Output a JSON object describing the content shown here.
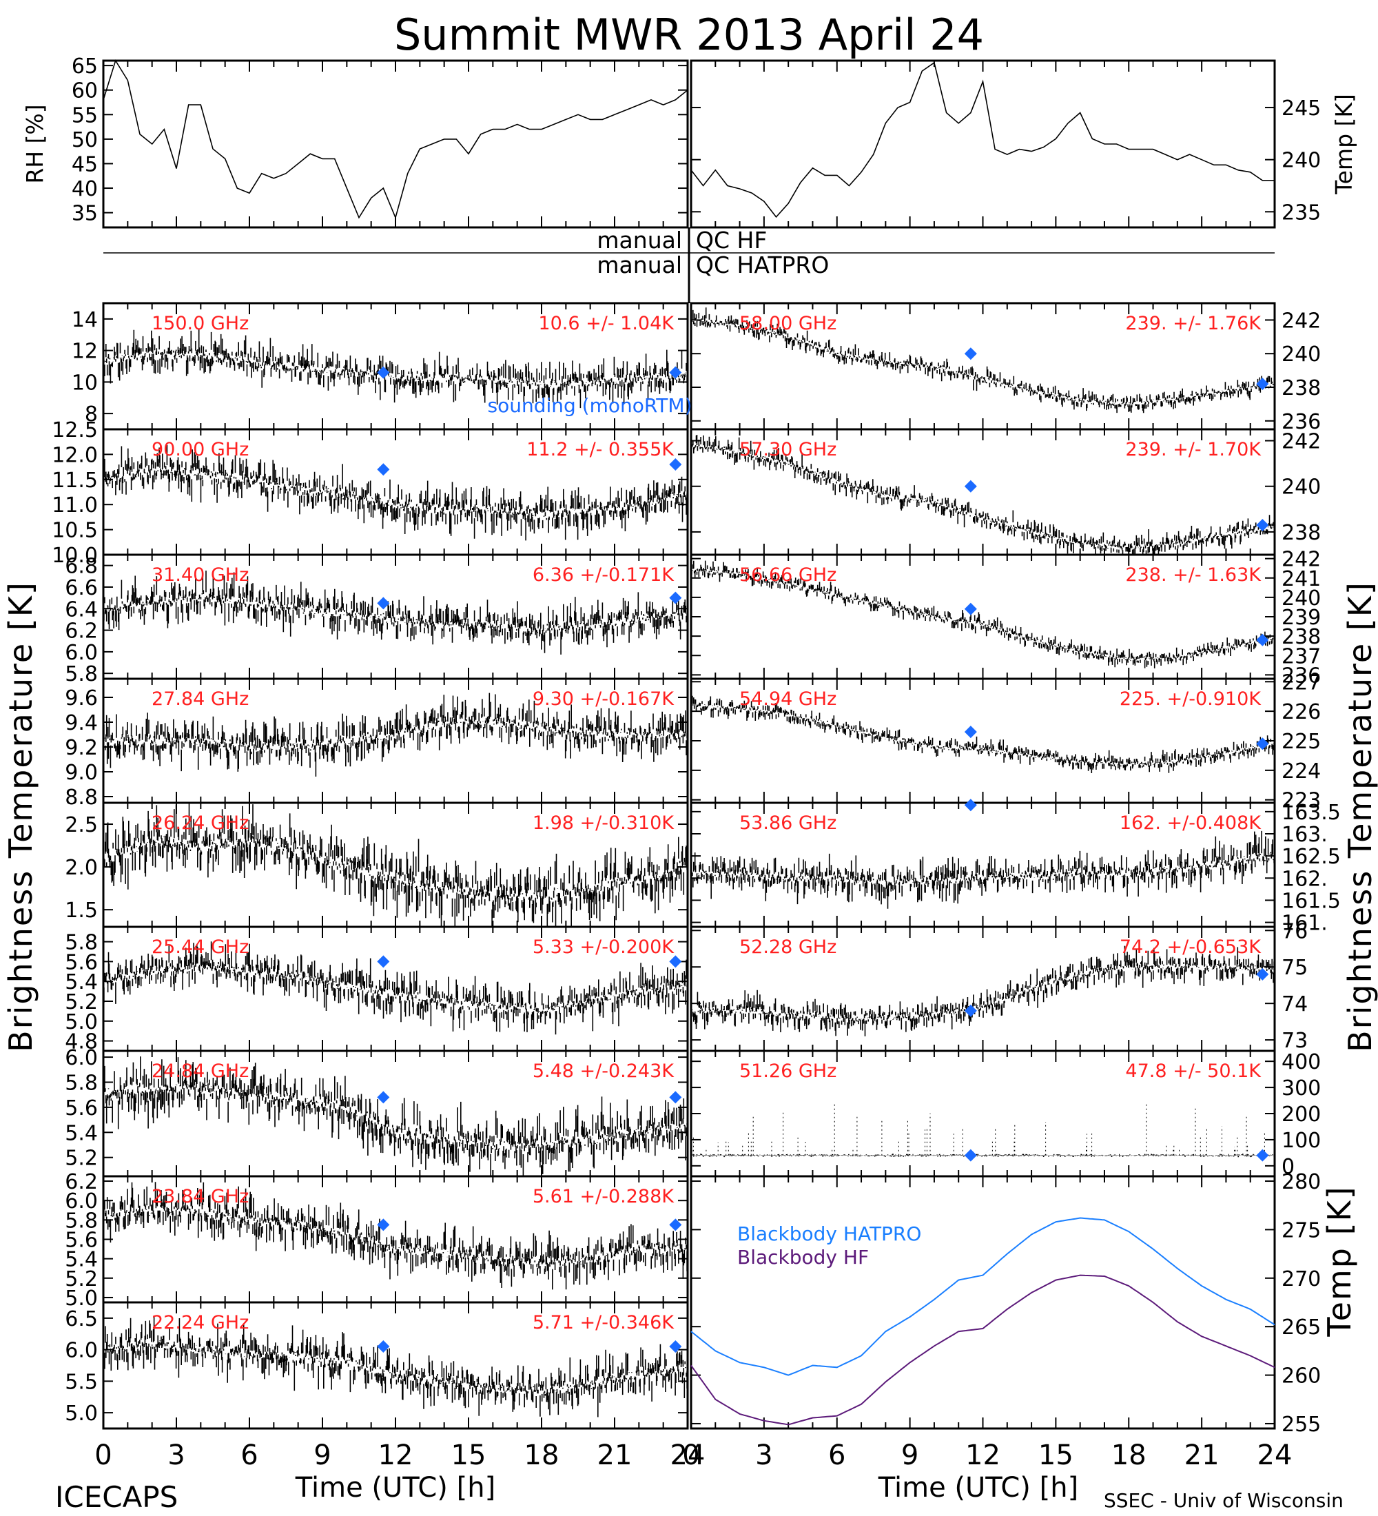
{
  "title": "Summit MWR 2013 April 24",
  "footer": {
    "left": "ICECAPS",
    "credit": "SSEC - Univ of Wisconsin"
  },
  "qc": {
    "row1_left": "manual",
    "row1_right": "QC HF",
    "row2_left": "manual",
    "row2_right": "QC HATPRO"
  },
  "labels": {
    "y_left": "Brightness Temperature [K]",
    "y_right": "Brightness Temperature [K]",
    "x_left": "Time (UTC) [h]",
    "x_right": "Time (UTC) [h]",
    "rh": "RH [%]",
    "temp_top": "Temp [K]",
    "temp_bottom": "Temp [K]",
    "sounding_legend": "sounding (monoRTM)"
  },
  "colors": {
    "data": "#000000",
    "label_red": "#ff2020",
    "sounding": "#1a6aff",
    "bb_hatpro": "#1a7fff",
    "bb_hf": "#5c1a7a"
  },
  "chart_data": [
    {
      "id": "rh",
      "type": "line",
      "title": "",
      "xlabel": "",
      "ylabel": "RH [%]",
      "xlim": [
        0,
        24
      ],
      "ylim": [
        32,
        66
      ],
      "yticks": [
        35,
        40,
        45,
        50,
        55,
        60,
        65
      ],
      "x": [
        0,
        0.5,
        1,
        1.5,
        2,
        2.5,
        3,
        3.5,
        4,
        4.5,
        5,
        5.5,
        6,
        6.5,
        7,
        7.5,
        8,
        8.5,
        9,
        9.5,
        10,
        10.5,
        11,
        11.5,
        12,
        12.5,
        13,
        13.5,
        14,
        14.5,
        15,
        15.5,
        16,
        16.5,
        17,
        17.5,
        18,
        18.5,
        19,
        19.5,
        20,
        20.5,
        21,
        21.5,
        22,
        22.5,
        23,
        23.5,
        24
      ],
      "values": [
        58,
        66,
        62,
        51,
        49,
        52,
        44,
        57,
        57,
        48,
        46,
        40,
        39,
        43,
        42,
        43,
        45,
        47,
        46,
        46,
        40,
        34,
        38,
        40,
        34,
        43,
        48,
        49,
        50,
        50,
        47,
        51,
        52,
        52,
        53,
        52,
        52,
        53,
        54,
        55,
        54,
        54,
        55,
        56,
        57,
        58,
        57,
        58,
        60
      ]
    },
    {
      "id": "temp_top",
      "type": "line",
      "title": "",
      "xlabel": "",
      "ylabel": "Temp [K]",
      "xlim": [
        0,
        24
      ],
      "ylim": [
        233.5,
        249.5
      ],
      "yticks": [
        235,
        240,
        245
      ],
      "x": [
        0,
        0.5,
        1,
        1.5,
        2,
        2.5,
        3,
        3.5,
        4,
        4.5,
        5,
        5.5,
        6,
        6.5,
        7,
        7.5,
        8,
        8.5,
        9,
        9.5,
        10,
        10.5,
        11,
        11.5,
        12,
        12.5,
        13,
        13.5,
        14,
        14.5,
        15,
        15.5,
        16,
        16.5,
        17,
        17.5,
        18,
        18.5,
        19,
        19.5,
        20,
        20.5,
        21,
        21.5,
        22,
        22.5,
        23,
        23.5,
        24
      ],
      "values": [
        239,
        237.5,
        239,
        237.5,
        237.2,
        236.8,
        236,
        234.5,
        235.8,
        237.8,
        239.2,
        238.5,
        238.5,
        237.5,
        238.8,
        240.5,
        243.5,
        245,
        245.5,
        248.5,
        249.3,
        244.5,
        243.5,
        244.5,
        247.5,
        241,
        240.5,
        241,
        240.8,
        241.2,
        242,
        243.5,
        244.5,
        242,
        241.5,
        241.5,
        241,
        241,
        241,
        240.5,
        240,
        240.5,
        240,
        239.5,
        239.5,
        239,
        238.8,
        238,
        238
      ]
    },
    {
      "id": "bt_150",
      "type": "scatter",
      "freq_label": "150.0 GHz",
      "stat_label": "10.6 +/- 1.04K",
      "ylim": [
        7,
        15
      ],
      "yticks": [
        8,
        10,
        12,
        14
      ],
      "x": [
        0,
        2,
        4,
        6,
        8,
        10,
        12,
        14,
        16,
        18,
        20,
        22,
        24
      ],
      "values": [
        11.3,
        11.8,
        11.7,
        11.3,
        10.9,
        10.7,
        10.3,
        10.2,
        10.1,
        9.9,
        10.0,
        10.2,
        10.4
      ],
      "noise": 1.0,
      "sounding": {
        "x": [
          11.5,
          23.5
        ],
        "values": [
          10.6,
          10.6
        ]
      }
    },
    {
      "id": "bt_90",
      "type": "scatter",
      "freq_label": "90.00 GHz",
      "stat_label": "11.2 +/- 0.355K",
      "ylim": [
        10.0,
        12.5
      ],
      "yticks": [
        10.0,
        10.5,
        11.0,
        11.5,
        12.0,
        12.5
      ],
      "x": [
        0,
        2,
        4,
        6,
        8,
        10,
        12,
        14,
        16,
        18,
        20,
        22,
        24
      ],
      "values": [
        11.5,
        11.7,
        11.6,
        11.5,
        11.3,
        11.2,
        11.0,
        10.9,
        10.9,
        10.8,
        10.9,
        11.0,
        11.2
      ],
      "noise": 0.35,
      "sounding": {
        "x": [
          11.5,
          23.5
        ],
        "values": [
          11.7,
          11.8
        ]
      }
    },
    {
      "id": "bt_31",
      "type": "scatter",
      "freq_label": "31.40 GHz",
      "stat_label": "6.36 +/-0.171K",
      "ylim": [
        5.75,
        6.9
      ],
      "yticks": [
        5.8,
        6.0,
        6.2,
        6.4,
        6.6,
        6.8
      ],
      "x": [
        0,
        2,
        4,
        6,
        8,
        10,
        12,
        14,
        16,
        18,
        20,
        22,
        24
      ],
      "values": [
        6.4,
        6.45,
        6.5,
        6.45,
        6.4,
        6.35,
        6.3,
        6.25,
        6.25,
        6.2,
        6.25,
        6.3,
        6.35
      ],
      "noise": 0.16,
      "sounding": {
        "x": [
          11.5,
          23.5
        ],
        "values": [
          6.45,
          6.5
        ]
      }
    },
    {
      "id": "bt_27",
      "type": "scatter",
      "freq_label": "27.84 GHz",
      "stat_label": "9.30 +/-0.167K",
      "ylim": [
        8.75,
        9.75
      ],
      "yticks": [
        8.8,
        9.0,
        9.2,
        9.4,
        9.6
      ],
      "x": [
        0,
        2,
        4,
        6,
        8,
        10,
        12,
        14,
        16,
        18,
        20,
        22,
        24
      ],
      "values": [
        9.25,
        9.25,
        9.25,
        9.2,
        9.2,
        9.25,
        9.3,
        9.4,
        9.4,
        9.35,
        9.3,
        9.3,
        9.3
      ],
      "noise": 0.15
    },
    {
      "id": "bt_26",
      "type": "scatter",
      "freq_label": "26.24 GHz",
      "stat_label": "1.98 +/-0.310K",
      "ylim": [
        1.3,
        2.75
      ],
      "yticks": [
        1.5,
        2.0,
        2.5
      ],
      "x": [
        0,
        2,
        4,
        6,
        8,
        10,
        12,
        14,
        16,
        18,
        20,
        22,
        24
      ],
      "values": [
        2.1,
        2.3,
        2.25,
        2.3,
        2.2,
        2.0,
        1.85,
        1.75,
        1.65,
        1.65,
        1.75,
        1.85,
        2.0
      ],
      "noise": 0.3
    },
    {
      "id": "bt_25",
      "type": "scatter",
      "freq_label": "25.44 GHz",
      "stat_label": "5.33 +/-0.200K",
      "ylim": [
        4.7,
        5.95
      ],
      "yticks": [
        4.8,
        5.0,
        5.2,
        5.4,
        5.6,
        5.8
      ],
      "x": [
        0,
        2,
        4,
        6,
        8,
        10,
        12,
        14,
        16,
        18,
        20,
        22,
        24
      ],
      "values": [
        5.4,
        5.5,
        5.55,
        5.5,
        5.45,
        5.35,
        5.25,
        5.2,
        5.15,
        5.1,
        5.2,
        5.3,
        5.35
      ],
      "noise": 0.18,
      "sounding": {
        "x": [
          11.5,
          23.5
        ],
        "values": [
          5.6,
          5.6
        ]
      }
    },
    {
      "id": "bt_24",
      "type": "scatter",
      "freq_label": "24.84 GHz",
      "stat_label": "5.48 +/-0.243K",
      "ylim": [
        5.05,
        6.05
      ],
      "yticks": [
        5.2,
        5.4,
        5.6,
        5.8,
        6.0
      ],
      "x": [
        0,
        2,
        4,
        6,
        8,
        10,
        12,
        14,
        16,
        18,
        20,
        22,
        24
      ],
      "values": [
        5.7,
        5.75,
        5.75,
        5.7,
        5.65,
        5.6,
        5.4,
        5.35,
        5.3,
        5.3,
        5.35,
        5.4,
        5.45
      ],
      "noise": 0.18,
      "sounding": {
        "x": [
          11.5,
          23.5
        ],
        "values": [
          5.68,
          5.68
        ]
      }
    },
    {
      "id": "bt_23",
      "type": "scatter",
      "freq_label": "23.84 GHz",
      "stat_label": "5.61 +/-0.288K",
      "ylim": [
        4.95,
        6.25
      ],
      "yticks": [
        5.0,
        5.2,
        5.4,
        5.6,
        5.8,
        6.0,
        6.2
      ],
      "x": [
        0,
        2,
        4,
        6,
        8,
        10,
        12,
        14,
        16,
        18,
        20,
        22,
        24
      ],
      "values": [
        5.85,
        5.9,
        5.9,
        5.8,
        5.75,
        5.65,
        5.5,
        5.45,
        5.4,
        5.35,
        5.4,
        5.5,
        5.5
      ],
      "noise": 0.2,
      "sounding": {
        "x": [
          11.5,
          23.5
        ],
        "values": [
          5.75,
          5.75
        ]
      }
    },
    {
      "id": "bt_22",
      "type": "scatter",
      "freq_label": "22.24 GHz",
      "stat_label": "5.71 +/-0.346K",
      "ylim": [
        4.75,
        6.75
      ],
      "yticks": [
        5.0,
        5.5,
        6.0,
        6.5
      ],
      "x": [
        0,
        2,
        4,
        6,
        8,
        10,
        12,
        14,
        16,
        18,
        20,
        22,
        24
      ],
      "values": [
        6.0,
        6.1,
        6.0,
        5.95,
        5.9,
        5.8,
        5.6,
        5.5,
        5.4,
        5.35,
        5.45,
        5.6,
        5.7
      ],
      "noise": 0.3,
      "sounding": {
        "x": [
          11.5,
          23.5
        ],
        "values": [
          6.05,
          6.05
        ]
      }
    },
    {
      "id": "bt_58",
      "type": "scatter",
      "freq_label": "58.00 GHz",
      "stat_label": "239. +/- 1.76K",
      "ylim": [
        235.5,
        243
      ],
      "yticks": [
        236,
        238,
        240,
        242
      ],
      "x": [
        0,
        2,
        4,
        6,
        8,
        10,
        12,
        14,
        16,
        18,
        20,
        22,
        24
      ],
      "values": [
        242.0,
        241.7,
        241.0,
        240.0,
        239.5,
        239.2,
        238.5,
        237.8,
        237.2,
        237.0,
        237.3,
        237.8,
        238.2
      ],
      "noise": 0.45,
      "sounding": {
        "x": [
          11.5,
          23.5
        ],
        "values": [
          240.0,
          238.2
        ]
      }
    },
    {
      "id": "bt_57",
      "type": "scatter",
      "freq_label": "57.30 GHz",
      "stat_label": "239. +/- 1.70K",
      "ylim": [
        237,
        242.5
      ],
      "yticks": [
        238,
        240,
        242
      ],
      "x": [
        0,
        2,
        4,
        6,
        8,
        10,
        12,
        14,
        16,
        18,
        20,
        22,
        24
      ],
      "values": [
        241.8,
        241.5,
        241.0,
        240.2,
        239.6,
        239.3,
        238.6,
        238.0,
        237.5,
        237.3,
        237.5,
        237.9,
        238.2
      ],
      "noise": 0.4,
      "sounding": {
        "x": [
          11.5,
          23.5
        ],
        "values": [
          240.0,
          238.3
        ]
      }
    },
    {
      "id": "bt_56",
      "type": "scatter",
      "freq_label": "56.66 GHz",
      "stat_label": "238. +/- 1.63K",
      "ylim": [
        235.8,
        242.2
      ],
      "yticks": [
        236,
        237,
        238,
        239,
        240,
        241,
        242
      ],
      "x": [
        0,
        2,
        4,
        6,
        8,
        10,
        12,
        14,
        16,
        18,
        20,
        22,
        24
      ],
      "values": [
        241.4,
        241.2,
        240.7,
        240.1,
        239.6,
        239.0,
        238.6,
        237.8,
        237.2,
        236.8,
        236.9,
        237.4,
        237.9
      ],
      "noise": 0.35,
      "sounding": {
        "x": [
          11.5,
          23.5
        ],
        "values": [
          239.4,
          237.8
        ]
      }
    },
    {
      "id": "bt_54",
      "type": "scatter",
      "freq_label": "54.94 GHz",
      "stat_label": "225. +/-0.910K",
      "ylim": [
        222.9,
        227.1
      ],
      "yticks": [
        223,
        224,
        225,
        226,
        227
      ],
      "x": [
        0,
        2,
        4,
        6,
        8,
        10,
        12,
        14,
        16,
        18,
        20,
        22,
        24
      ],
      "values": [
        226.2,
        226.1,
        225.9,
        225.5,
        225.1,
        224.8,
        224.7,
        224.5,
        224.3,
        224.2,
        224.3,
        224.6,
        224.9
      ],
      "noise": 0.25,
      "sounding": {
        "x": [
          11.5,
          23.5
        ],
        "values": [
          225.3,
          224.9
        ]
      }
    },
    {
      "id": "bt_53",
      "type": "scatter",
      "freq_label": "53.86 GHz",
      "stat_label": "162. +/-0.408K",
      "ylim": [
        160.9,
        163.7
      ],
      "yticks": [
        161.0,
        161.5,
        162.0,
        162.5,
        163.0,
        163.5
      ],
      "tick_labels": [
        "161.",
        "161.5",
        "162.",
        "162.5",
        "163.",
        "163.5"
      ],
      "x": [
        0,
        2,
        4,
        6,
        8,
        10,
        12,
        14,
        16,
        18,
        20,
        22,
        24
      ],
      "values": [
        162.1,
        162.1,
        162.0,
        162.0,
        161.9,
        161.95,
        162.0,
        162.05,
        162.1,
        162.1,
        162.2,
        162.35,
        162.5
      ],
      "noise": 0.35,
      "sounding": {
        "x": [
          11.5
        ],
        "values": [
          163.65
        ]
      }
    },
    {
      "id": "bt_52",
      "type": "scatter",
      "freq_label": "52.28 GHz",
      "stat_label": "74.2 +/-0.653K",
      "ylim": [
        72.7,
        76.1
      ],
      "yticks": [
        73,
        74,
        75,
        76
      ],
      "x": [
        0,
        2,
        4,
        6,
        8,
        10,
        12,
        14,
        16,
        18,
        20,
        22,
        24
      ],
      "values": [
        73.8,
        73.8,
        73.7,
        73.6,
        73.6,
        73.7,
        73.9,
        74.4,
        74.8,
        75.0,
        75.0,
        75.0,
        74.9
      ],
      "noise": 0.35,
      "sounding": {
        "x": [
          11.5,
          23.5
        ],
        "values": [
          73.8,
          74.8
        ]
      }
    },
    {
      "id": "bt_51",
      "type": "scatter",
      "freq_label": "51.26 GHz",
      "stat_label": "47.8 +/- 50.1K",
      "ylim": [
        -40,
        440
      ],
      "yticks": [
        0,
        100,
        200,
        300,
        400
      ],
      "x": [
        0,
        2,
        4,
        6,
        8,
        10,
        12,
        14,
        16,
        18,
        20,
        22,
        24
      ],
      "values": [
        40,
        40,
        40,
        40,
        40,
        40,
        40,
        40,
        40,
        40,
        40,
        40,
        40
      ],
      "noise": 4,
      "sounding": {
        "x": [
          11.5,
          23.5
        ],
        "values": [
          40,
          40
        ]
      }
    },
    {
      "id": "blackbody",
      "type": "line",
      "title": "",
      "xlabel": "Time (UTC) [h]",
      "ylabel": "Temp [K]",
      "xlim": [
        0,
        24
      ],
      "ylim": [
        254.5,
        280.5
      ],
      "yticks": [
        255,
        260,
        265,
        270,
        275,
        280
      ],
      "x": [
        0,
        1,
        2,
        3,
        4,
        5,
        6,
        7,
        8,
        9,
        10,
        11,
        12,
        13,
        14,
        15,
        16,
        17,
        18,
        19,
        20,
        21,
        22,
        23,
        24
      ],
      "series": [
        {
          "name": "Blackbody HATPRO",
          "values": [
            264.5,
            262.5,
            261.3,
            260.8,
            260.0,
            261.0,
            260.8,
            262.0,
            264.5,
            266.0,
            267.8,
            269.8,
            270.3,
            272.5,
            274.5,
            275.8,
            276.2,
            276.0,
            274.8,
            273.0,
            271.0,
            269.2,
            267.8,
            266.8,
            265.2
          ]
        },
        {
          "name": "Blackbody HF",
          "values": [
            261.0,
            257.5,
            256.0,
            255.3,
            254.9,
            255.6,
            255.8,
            257.0,
            259.3,
            261.3,
            263.0,
            264.5,
            264.8,
            266.8,
            268.5,
            269.8,
            270.3,
            270.2,
            269.2,
            267.5,
            265.5,
            264.0,
            263.0,
            262.0,
            260.8
          ]
        }
      ]
    }
  ]
}
